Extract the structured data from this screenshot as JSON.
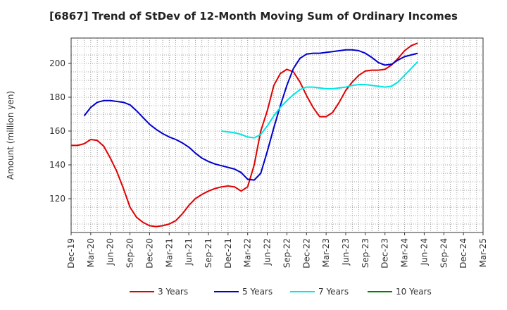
{
  "chart_data": {
    "type": "line",
    "title": "[6867]  Trend of StDev of 12-Month Moving Sum of Ordinary Incomes",
    "ylabel": "Amount (million yen)",
    "xlabel": "",
    "ylim": [
      100,
      215
    ],
    "yticks": [
      120,
      140,
      160,
      180,
      200
    ],
    "xticks": [
      "Dec-19",
      "Mar-20",
      "Jun-20",
      "Sep-20",
      "Dec-20",
      "Mar-21",
      "Jun-21",
      "Sep-21",
      "Dec-21",
      "Mar-22",
      "Jun-22",
      "Sep-22",
      "Dec-22",
      "Mar-23",
      "Jun-23",
      "Sep-23",
      "Dec-23",
      "Mar-24",
      "Jun-24",
      "Sep-24",
      "Dec-24",
      "Mar-25"
    ],
    "grid": true,
    "legend_position": "bottom",
    "series": [
      {
        "name": "3 Years",
        "color": "#e00000",
        "points": [
          [
            0,
            151.5
          ],
          [
            1,
            151.5
          ],
          [
            2,
            152.5
          ],
          [
            3,
            155
          ],
          [
            4,
            154.5
          ],
          [
            5,
            151
          ],
          [
            6,
            144
          ],
          [
            7,
            136
          ],
          [
            8,
            126
          ],
          [
            9,
            115
          ],
          [
            10,
            109
          ],
          [
            11,
            106
          ],
          [
            12,
            104
          ],
          [
            13,
            103.5
          ],
          [
            14,
            104
          ],
          [
            15,
            105
          ],
          [
            16,
            107
          ],
          [
            17,
            111
          ],
          [
            18,
            116
          ],
          [
            19,
            120
          ],
          [
            20,
            122.5
          ],
          [
            21,
            124.5
          ],
          [
            22,
            126
          ],
          [
            23,
            127
          ],
          [
            24,
            127.5
          ],
          [
            25,
            127
          ],
          [
            26,
            124.5
          ],
          [
            27,
            127
          ],
          [
            28,
            140
          ],
          [
            29,
            160
          ],
          [
            30,
            172
          ],
          [
            31,
            187
          ],
          [
            32,
            194
          ],
          [
            33,
            196.5
          ],
          [
            34,
            195
          ],
          [
            35,
            189
          ],
          [
            36,
            181
          ],
          [
            37,
            174
          ],
          [
            38,
            168.5
          ],
          [
            39,
            168.5
          ],
          [
            40,
            171
          ],
          [
            41,
            177
          ],
          [
            42,
            184
          ],
          [
            43,
            189
          ],
          [
            44,
            193
          ],
          [
            45,
            195.5
          ],
          [
            46,
            196
          ],
          [
            47,
            196
          ],
          [
            48,
            196.5
          ],
          [
            49,
            199
          ],
          [
            50,
            203
          ],
          [
            51,
            207.5
          ],
          [
            52,
            210.5
          ],
          [
            53,
            212
          ]
        ]
      },
      {
        "name": "5 Years",
        "color": "#0000cc",
        "points": [
          [
            2,
            169
          ],
          [
            3,
            174
          ],
          [
            4,
            177
          ],
          [
            5,
            178
          ],
          [
            6,
            178
          ],
          [
            7,
            177.5
          ],
          [
            8,
            177
          ],
          [
            9,
            175.5
          ],
          [
            10,
            172
          ],
          [
            11,
            168
          ],
          [
            12,
            164
          ],
          [
            13,
            161
          ],
          [
            14,
            158.5
          ],
          [
            15,
            156.5
          ],
          [
            16,
            155
          ],
          [
            17,
            153
          ],
          [
            18,
            150.5
          ],
          [
            19,
            147
          ],
          [
            20,
            144
          ],
          [
            21,
            142
          ],
          [
            22,
            140.5
          ],
          [
            23,
            139.5
          ],
          [
            24,
            138.5
          ],
          [
            25,
            137.5
          ],
          [
            26,
            135.5
          ],
          [
            27,
            131.5
          ],
          [
            28,
            131
          ],
          [
            29,
            135
          ],
          [
            30,
            148
          ],
          [
            31,
            162
          ],
          [
            32,
            175
          ],
          [
            33,
            187
          ],
          [
            34,
            197
          ],
          [
            35,
            203
          ],
          [
            36,
            205.5
          ],
          [
            37,
            206
          ],
          [
            38,
            206
          ],
          [
            39,
            206.5
          ],
          [
            40,
            207
          ],
          [
            41,
            207.5
          ],
          [
            42,
            208
          ],
          [
            43,
            208
          ],
          [
            44,
            207.5
          ],
          [
            45,
            206
          ],
          [
            46,
            203.5
          ],
          [
            47,
            200.5
          ],
          [
            48,
            199
          ],
          [
            49,
            199.5
          ],
          [
            50,
            202
          ],
          [
            51,
            204
          ],
          [
            52,
            205
          ],
          [
            53,
            206
          ]
        ]
      },
      {
        "name": "7 Years",
        "color": "#00e6e6",
        "points": [
          [
            23,
            160
          ],
          [
            24,
            159.5
          ],
          [
            25,
            159
          ],
          [
            26,
            158
          ],
          [
            27,
            156.5
          ],
          [
            28,
            156
          ],
          [
            29,
            158
          ],
          [
            30,
            163
          ],
          [
            31,
            169
          ],
          [
            32,
            174
          ],
          [
            33,
            178
          ],
          [
            34,
            181.5
          ],
          [
            35,
            184.5
          ],
          [
            36,
            186
          ],
          [
            37,
            186
          ],
          [
            38,
            185.5
          ],
          [
            39,
            185
          ],
          [
            40,
            185
          ],
          [
            41,
            185.5
          ],
          [
            42,
            186
          ],
          [
            43,
            187
          ],
          [
            44,
            187.5
          ],
          [
            45,
            187.5
          ],
          [
            46,
            187
          ],
          [
            47,
            186.5
          ],
          [
            48,
            186
          ],
          [
            49,
            186.5
          ],
          [
            50,
            189
          ],
          [
            51,
            193
          ],
          [
            52,
            197
          ],
          [
            53,
            201
          ]
        ]
      },
      {
        "name": "10 Years",
        "color": "#008000",
        "points": []
      }
    ]
  }
}
